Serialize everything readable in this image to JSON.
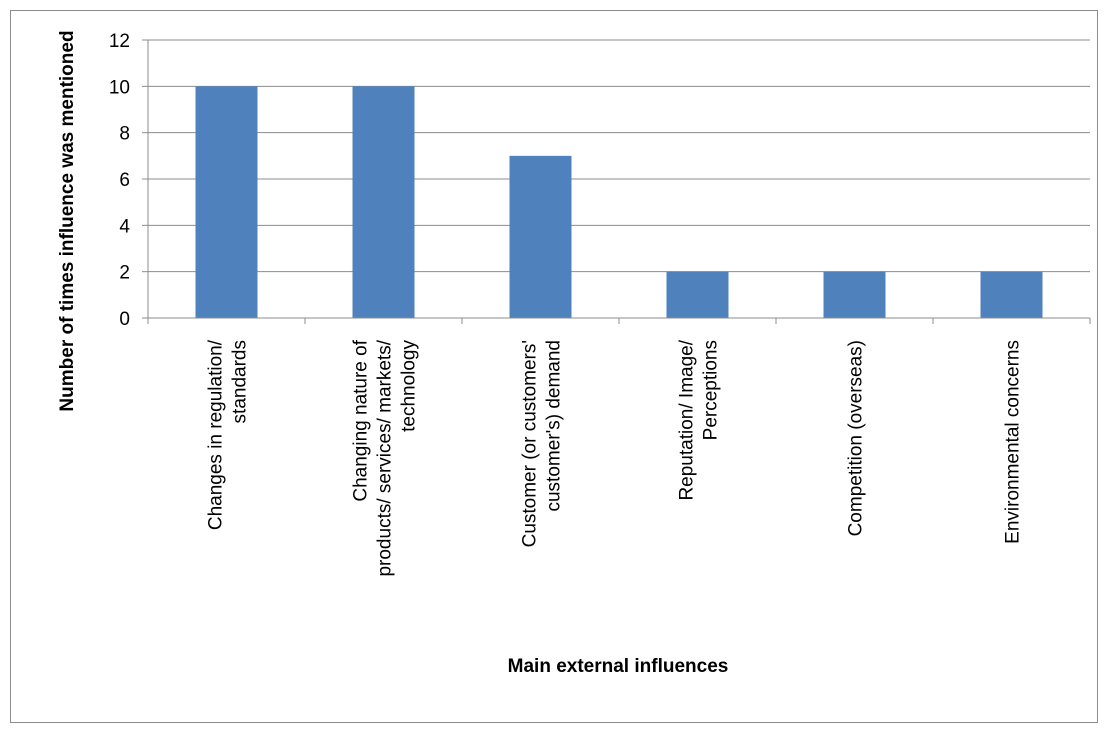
{
  "chart_data": {
    "type": "bar",
    "categories": [
      [
        "Changes in regulation/",
        "standards"
      ],
      [
        "Changing nature of",
        "products/ services/ markets/",
        "technology"
      ],
      [
        "Customer (or customers'",
        "customer's) demand"
      ],
      [
        "Reputation/ Image/",
        "Perceptions"
      ],
      [
        "Competition (overseas)"
      ],
      [
        "Environmental concerns"
      ]
    ],
    "values": [
      10,
      10,
      7,
      2,
      2,
      2
    ],
    "title": "",
    "xlabel": "Main external influences",
    "ylabel": "Number of times influence was mentioned",
    "ylim": [
      0,
      12
    ],
    "yticks": [
      0,
      2,
      4,
      6,
      8,
      10,
      12
    ],
    "grid": true,
    "legend": "none",
    "colors": {
      "bar": "#4f81bd",
      "grid": "#8c8c8c",
      "axis": "#8c8c8c",
      "frame": "#8c8c8c"
    }
  }
}
